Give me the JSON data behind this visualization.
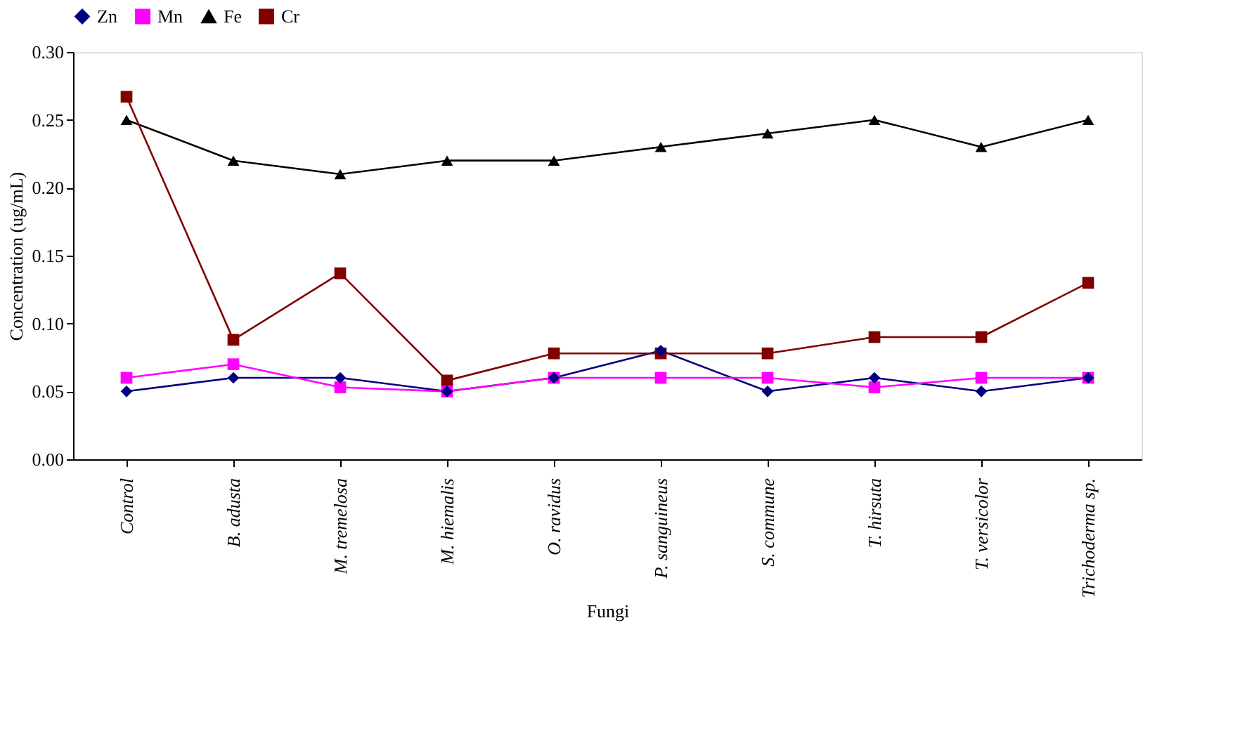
{
  "chart_data": {
    "type": "line",
    "xlabel": "Fungi",
    "ylabel": "Concentration (ug/mL)",
    "categories": [
      "Control",
      "B. adusta",
      "M. tremelosa",
      "M. hiemalis",
      "O. ravidus",
      "P. sanguineus",
      "S. commune",
      "T. hirsuta",
      "T. versicolor",
      "Trichoderma sp."
    ],
    "series": [
      {
        "name": "Zn",
        "color": "#000080",
        "marker": "diamond",
        "values": [
          0.05,
          0.06,
          0.06,
          0.05,
          0.06,
          0.08,
          0.05,
          0.06,
          0.05,
          0.06
        ]
      },
      {
        "name": "Mn",
        "color": "#ff00ff",
        "marker": "square",
        "values": [
          0.06,
          0.07,
          0.053,
          0.05,
          0.06,
          0.06,
          0.06,
          0.053,
          0.06,
          0.06
        ]
      },
      {
        "name": "Fe",
        "color": "#000000",
        "marker": "triangle",
        "values": [
          0.25,
          0.22,
          0.21,
          0.22,
          0.22,
          0.23,
          0.24,
          0.25,
          0.23,
          0.25
        ]
      },
      {
        "name": "Cr",
        "color": "#800000",
        "marker": "square",
        "values": [
          0.267,
          0.088,
          0.137,
          0.058,
          0.078,
          0.078,
          0.078,
          0.09,
          0.09,
          0.13
        ]
      }
    ],
    "ylim": [
      0,
      0.3
    ],
    "yticks": [
      {
        "value": 0,
        "label": "0.00"
      },
      {
        "value": 0.05,
        "label": "0.05"
      },
      {
        "value": 0.1,
        "label": "0.10"
      },
      {
        "value": 0.15,
        "label": "0.15"
      },
      {
        "value": 0.2,
        "label": "0.20"
      },
      {
        "value": 0.25,
        "label": "0.25"
      },
      {
        "value": 0.3,
        "label": "0.30"
      }
    ],
    "grid": false,
    "legend": "top",
    "line_style": "solid"
  }
}
